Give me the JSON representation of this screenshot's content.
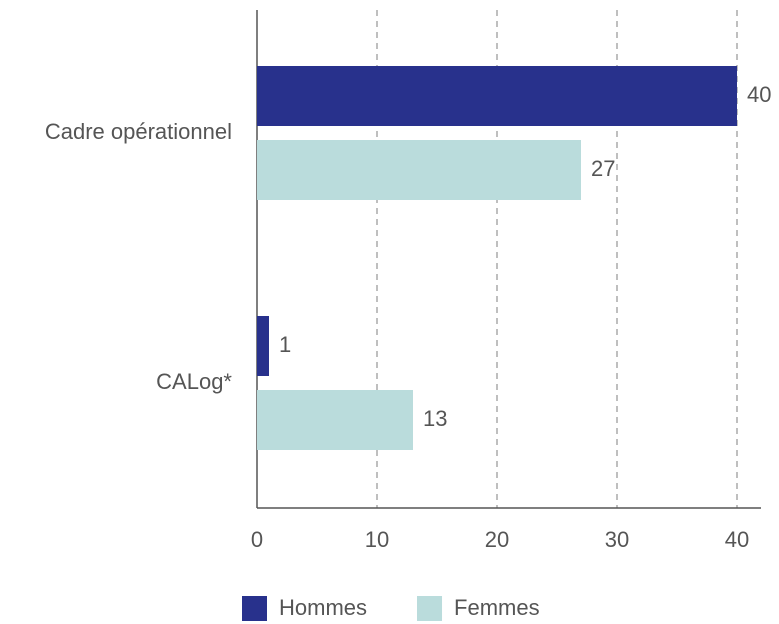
{
  "chart_data": {
    "type": "bar",
    "orientation": "horizontal",
    "categories": [
      "Cadre opérationnel",
      "CALog*"
    ],
    "series": [
      {
        "name": "Hommes",
        "color": "#28318c",
        "values": [
          40,
          1
        ]
      },
      {
        "name": "Femmes",
        "color": "#badcdc",
        "values": [
          27,
          13
        ]
      }
    ],
    "xlim": [
      0,
      42
    ],
    "xticks": [
      0,
      10,
      20,
      30,
      40
    ],
    "grid": true,
    "legend": "bottom"
  }
}
